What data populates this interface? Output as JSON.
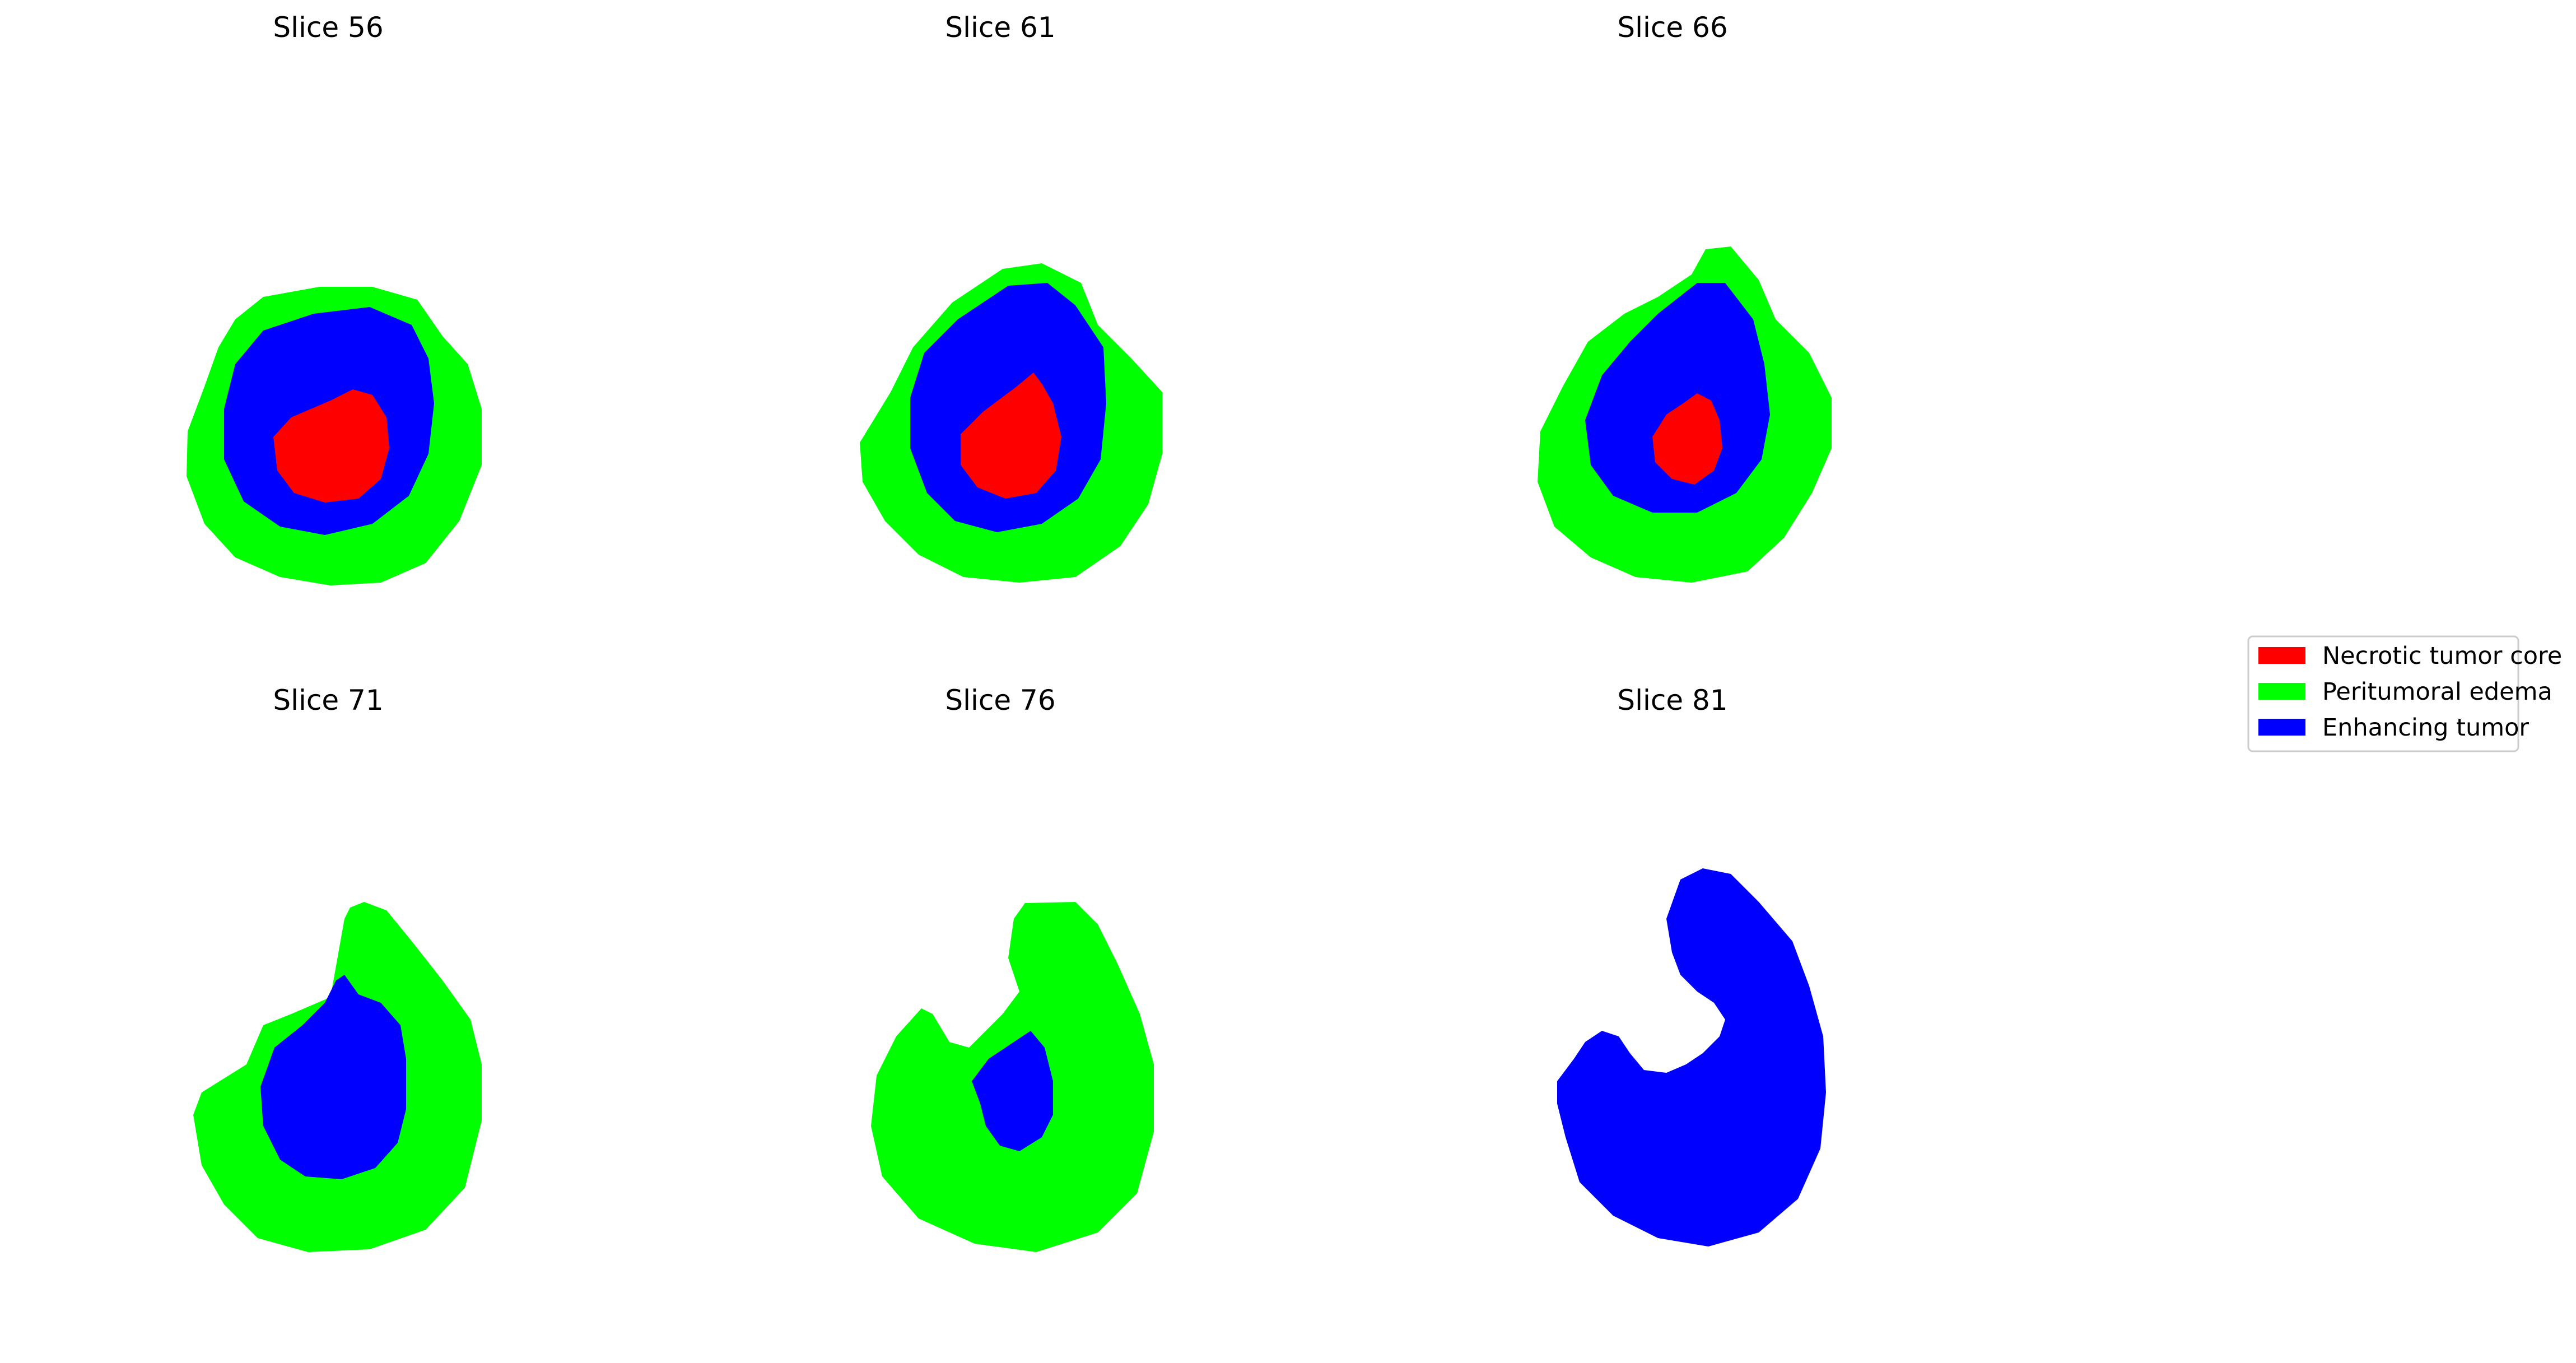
{
  "panels": [
    {
      "title": "Slice 56"
    },
    {
      "title": "Slice 61"
    },
    {
      "title": "Slice 66"
    },
    {
      "title": "Slice 71"
    },
    {
      "title": "Slice 76"
    },
    {
      "title": "Slice 81"
    }
  ],
  "legend": {
    "placement": "right",
    "items": [
      {
        "label": "Necrotic tumor core",
        "color": "#ff0000"
      },
      {
        "label": "Peritumoral edema",
        "color": "#00ff00"
      },
      {
        "label": "Enhancing tumor",
        "color": "#0000ff"
      }
    ]
  },
  "colors": {
    "necrotic": "#ff0000",
    "edema": "#00ff00",
    "enhancing": "#0000ff",
    "background": "#ffffff"
  }
}
